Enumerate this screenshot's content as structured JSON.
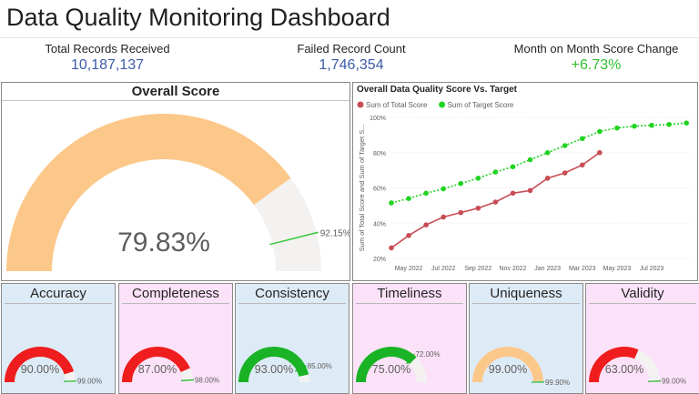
{
  "page_title": "Data Quality Monitoring Dashboard",
  "kpis": [
    {
      "label": "Total Records Received",
      "value": "10,187,137",
      "color": "#3d5ba9"
    },
    {
      "label": "Failed Record Count",
      "value": "1,746,354",
      "color": "#3d5ba9"
    },
    {
      "label": "Month on Month Score Change",
      "value": "+6.73%",
      "color": "#2fbf2f"
    }
  ],
  "overall": {
    "title": "Overall Score",
    "value_label": "79.83%",
    "value": 79.83,
    "target_label": "92.15%",
    "target": 92.15,
    "fill_color": "#fcc88a",
    "track_color": "#f3f2f1",
    "target_color": "#37c837"
  },
  "chart_data": {
    "type": "line",
    "title": "Overall Data Quality Score Vs. Target",
    "ylabel": "Sum of Total Score and Sum of Target S...",
    "xlabel": "",
    "ylim": [
      20,
      100
    ],
    "yticks": [
      "20%",
      "40%",
      "60%",
      "80%",
      "100%"
    ],
    "ytick_values": [
      20,
      40,
      60,
      80,
      100
    ],
    "xlim": [
      0,
      17.2
    ],
    "xticks": [
      "May 2022",
      "Jul 2022",
      "Sep 2022",
      "Nov 2022",
      "Jan 2023",
      "Mar 2023",
      "May 2023",
      "Jul 2023"
    ],
    "xtick_positions": [
      1,
      3,
      5,
      7,
      9,
      11,
      13,
      15
    ],
    "series": [
      {
        "name": "Sum of Total Score",
        "color": "#c94c55",
        "dashed": false,
        "x": [
          0,
          1,
          2,
          3,
          4,
          5,
          6,
          7,
          8,
          9,
          10,
          11,
          12
        ],
        "values": [
          26,
          33,
          39,
          43.5,
          46,
          48.5,
          52,
          57,
          58.5,
          65.5,
          68.5,
          73,
          80
        ]
      },
      {
        "name": "Sum of Target Score",
        "color": "#21d321",
        "dashed": true,
        "x": [
          0,
          1,
          2,
          3,
          4,
          5,
          6,
          7,
          8,
          9,
          10,
          11,
          12,
          13,
          14,
          15,
          16,
          17
        ],
        "values": [
          51.5,
          54,
          57,
          59.5,
          62.5,
          65.5,
          69,
          72,
          76,
          80,
          84,
          88,
          92,
          94,
          95,
          95.5,
          96,
          96.8
        ]
      }
    ]
  },
  "cards": [
    {
      "title": "Accuracy",
      "value_label": "90.00%",
      "value": 90,
      "target_label": "99.00%",
      "target": 99,
      "fill": "#ef1d1d",
      "bg": "blue"
    },
    {
      "title": "Completeness",
      "value_label": "87.00%",
      "value": 87,
      "target_label": "98.00%",
      "target": 98,
      "fill": "#ef1d1d",
      "bg": "pink"
    },
    {
      "title": "Consistency",
      "value_label": "93.00%",
      "value": 93,
      "target_label": "85.00%",
      "target": 85,
      "fill": "#19b325",
      "bg": "blue"
    },
    {
      "title": "Timeliness",
      "value_label": "75.00%",
      "value": 75,
      "target_label": "72.00%",
      "target": 72,
      "fill": "#19b325",
      "bg": "pink"
    },
    {
      "title": "Uniqueness",
      "value_label": "99.00%",
      "value": 99,
      "target_label": "99.90%",
      "target": 99.9,
      "fill": "#fcc88a",
      "bg": "blue"
    },
    {
      "title": "Validity",
      "value_label": "63.00%",
      "value": 63,
      "target_label": "99.00%",
      "target": 99,
      "fill": "#ef1d1d",
      "bg": "pink"
    }
  ]
}
